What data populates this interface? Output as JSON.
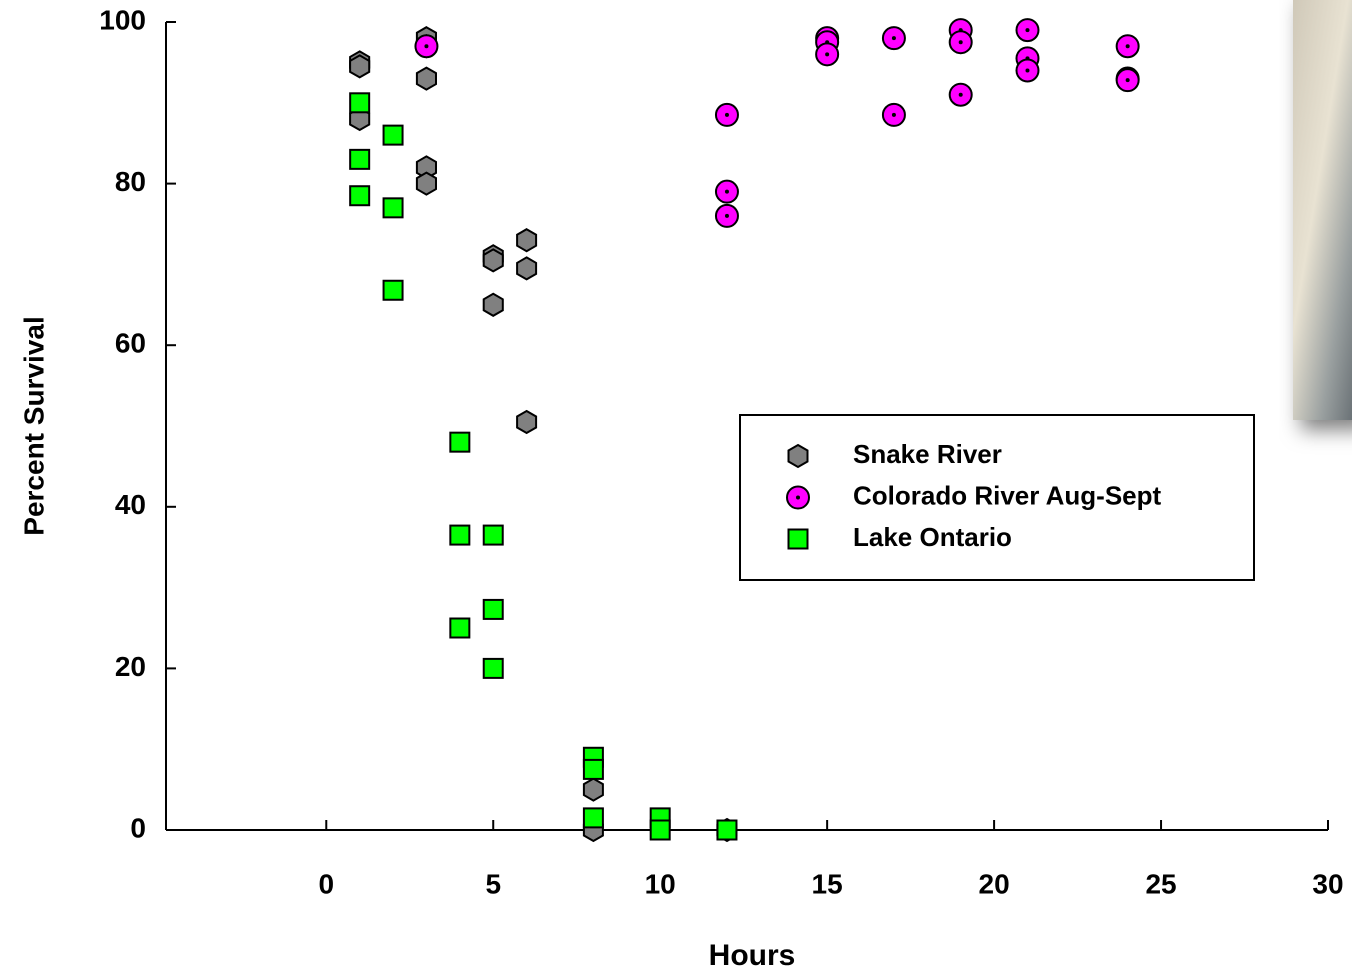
{
  "chart_data": {
    "type": "scatter",
    "x_label": "Hours",
    "y_label": "Percent Survival",
    "xlim": [
      -4.8,
      30
    ],
    "ylim": [
      0,
      100
    ],
    "xticks": [
      0,
      5,
      10,
      15,
      20,
      25,
      30
    ],
    "yticks": [
      0,
      20,
      40,
      60,
      80,
      100
    ],
    "grid": false,
    "legend_position": "right",
    "series": [
      {
        "name": "Snake River",
        "color": "#808080",
        "marker": "hexagon",
        "x": [
          1,
          1,
          1,
          3,
          3,
          3,
          3,
          3,
          5,
          5,
          5,
          6,
          6,
          6,
          8,
          8,
          12
        ],
        "values": [
          95,
          94.5,
          88,
          98,
          97,
          93,
          82,
          80,
          71,
          70.5,
          65,
          73,
          69.5,
          50.5,
          5,
          0,
          0
        ]
      },
      {
        "name": "Colorado River Aug-Sept",
        "color": "#ff00ff",
        "marker": "circle-dot",
        "x": [
          3,
          12,
          12,
          12,
          15,
          15,
          15,
          17,
          17,
          19,
          19,
          19,
          21,
          21,
          21,
          24,
          24,
          24
        ],
        "values": [
          97,
          88.5,
          79,
          76,
          98,
          97.5,
          96,
          98,
          88.5,
          99,
          97.5,
          91,
          99,
          95.5,
          94,
          97,
          93,
          92.8
        ]
      },
      {
        "name": "Lake Ontario",
        "color": "#00ff00",
        "marker": "square",
        "x": [
          1,
          1,
          1,
          2,
          2,
          2,
          4,
          4,
          4,
          5,
          5,
          5,
          8,
          8,
          8,
          10,
          10,
          12
        ],
        "values": [
          90,
          83,
          78.5,
          86,
          77,
          66.8,
          48,
          36.5,
          25,
          36.5,
          27.3,
          20,
          9,
          7.5,
          1.5,
          1.5,
          0,
          0
        ]
      }
    ]
  }
}
